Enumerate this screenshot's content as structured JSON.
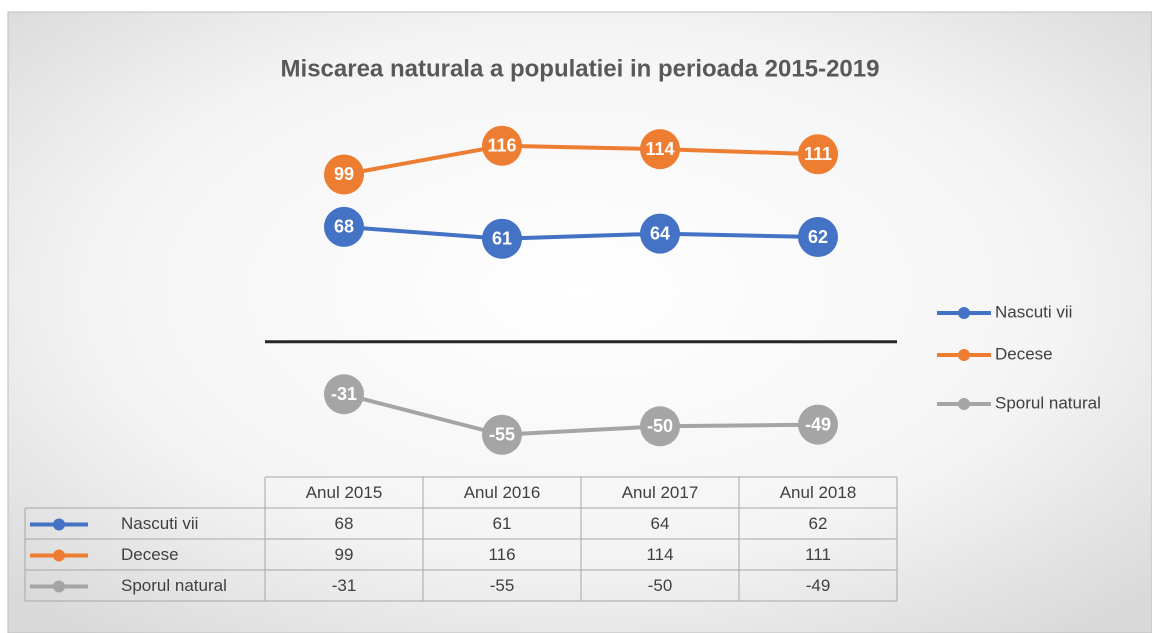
{
  "chart_data": {
    "type": "line",
    "title": "Miscarea naturala a populatiei in perioada 2015-2019",
    "categories": [
      "Anul 2015",
      "Anul 2016",
      "Anul 2017",
      "Anul 2018"
    ],
    "series": [
      {
        "name": "Nascuti vii",
        "color": "#4472c4",
        "values": [
          68,
          61,
          64,
          62
        ]
      },
      {
        "name": "Decese",
        "color": "#ed7d31",
        "values": [
          99,
          116,
          114,
          111
        ]
      },
      {
        "name": "Sporul natural",
        "color": "#a5a5a5",
        "values": [
          -31,
          -55,
          -50,
          -49
        ]
      }
    ],
    "ylim": [
      -80,
      120
    ],
    "legend": "right"
  }
}
